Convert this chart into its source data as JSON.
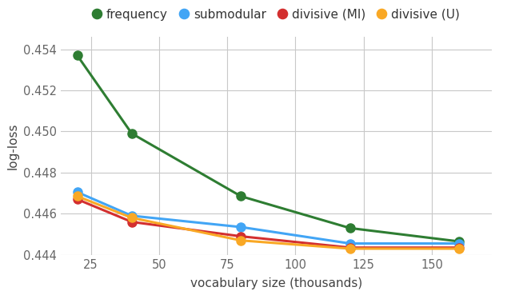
{
  "x": [
    20,
    40,
    80,
    120,
    160
  ],
  "frequency": [
    0.4537,
    0.4499,
    0.44685,
    0.4453,
    0.44465
  ],
  "submodular": [
    0.44705,
    0.4459,
    0.44535,
    0.44455,
    0.44455
  ],
  "divisive_MI": [
    0.4467,
    0.4456,
    0.4449,
    0.44435,
    0.44435
  ],
  "divisive_U": [
    0.44685,
    0.4458,
    0.4447,
    0.4443,
    0.4443
  ],
  "colors": {
    "frequency": "#2e7d32",
    "submodular": "#42a5f5",
    "divisive_MI": "#d32f2f",
    "divisive_U": "#f9a825"
  },
  "labels": {
    "frequency": "frequency",
    "submodular": "submodular",
    "divisive_MI": "divisive (MI)",
    "divisive_U": "divisive (U)"
  },
  "xlabel": "vocabulary size (thousands)",
  "ylabel": "log-loss",
  "ylim": [
    0.444,
    0.4546
  ],
  "yticks": [
    0.444,
    0.446,
    0.448,
    0.45,
    0.452,
    0.454
  ],
  "xticks": [
    25,
    50,
    75,
    100,
    125,
    150
  ],
  "xlim": [
    14,
    172
  ],
  "marker_size": 8,
  "linewidth": 2.2,
  "background_color": "#ffffff",
  "grid_color": "#c8c8c8"
}
